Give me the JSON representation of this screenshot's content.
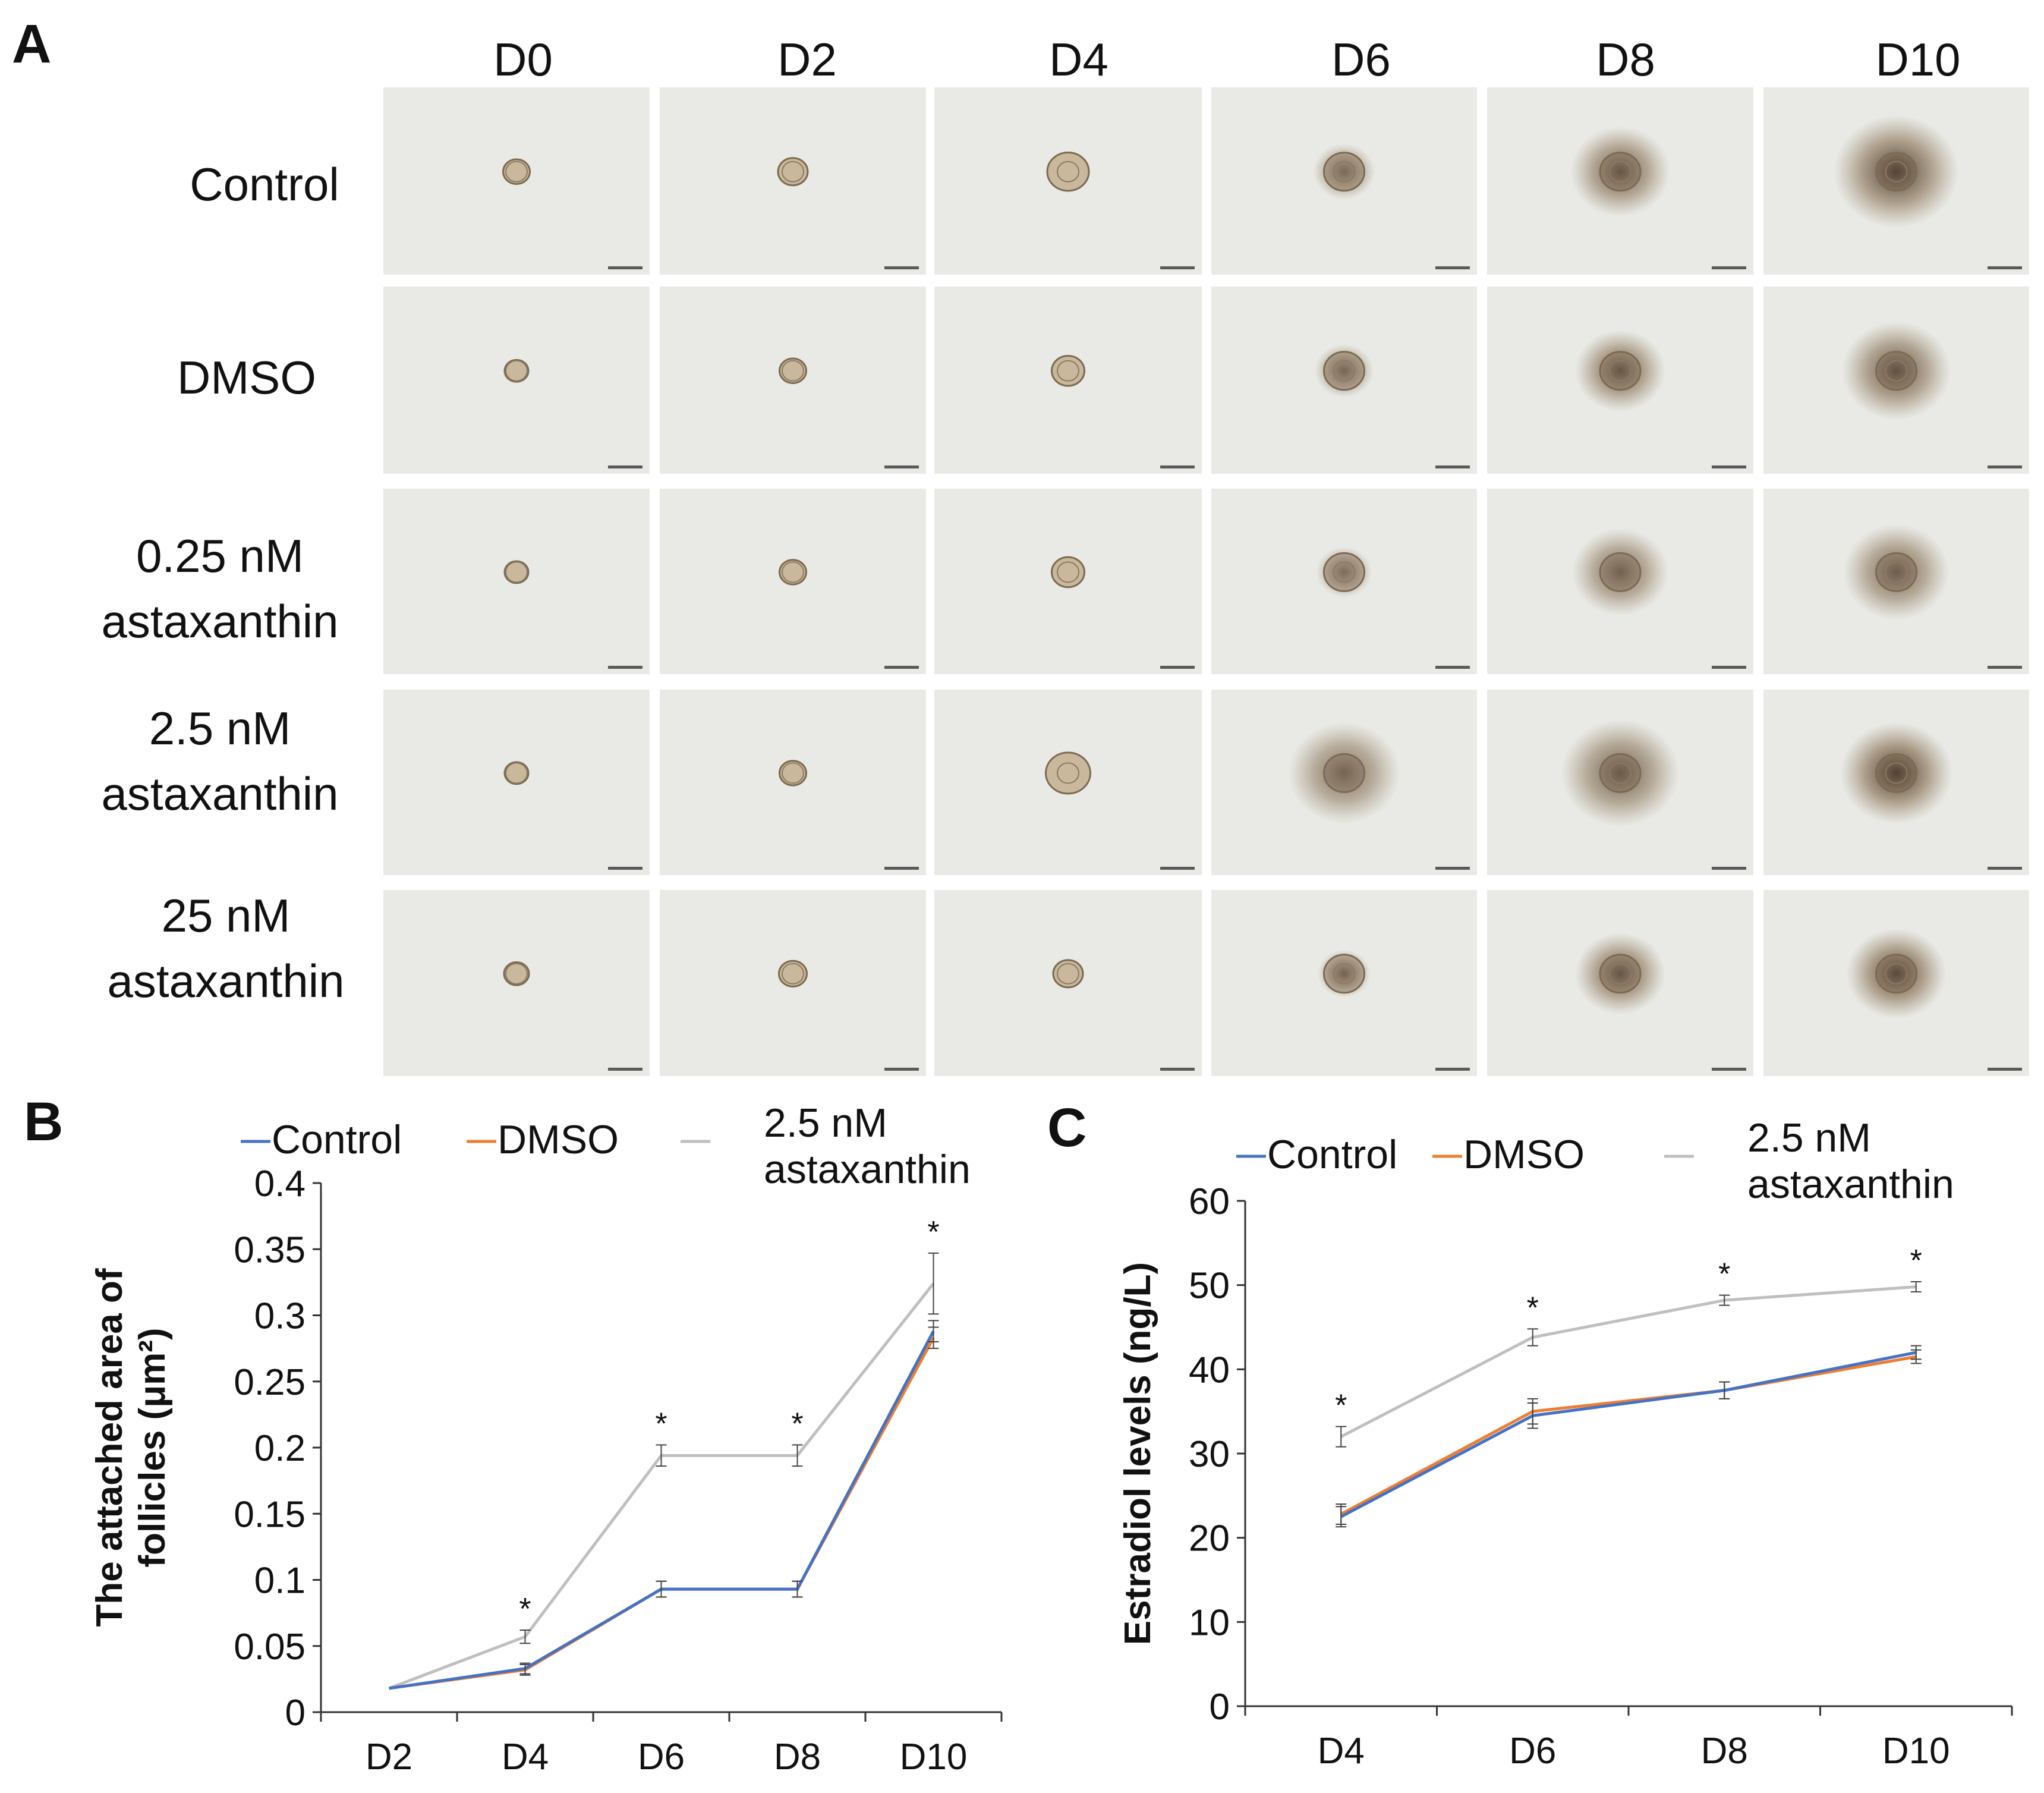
{
  "panel_a": {
    "letter": "A",
    "days": [
      "D0",
      "D2",
      "D4",
      "D6",
      "D8",
      "D10"
    ],
    "rows": [
      {
        "label_lines": [
          "Control"
        ],
        "growth": [
          0.45,
          0.5,
          0.7,
          1.0,
          1.6,
          2.0
        ],
        "darkness": [
          0.15,
          0.15,
          0.25,
          0.35,
          0.6,
          0.8
        ]
      },
      {
        "label_lines": [
          "DMSO"
        ],
        "growth": [
          0.4,
          0.45,
          0.55,
          0.95,
          1.45,
          1.75
        ],
        "darkness": [
          0.15,
          0.15,
          0.2,
          0.4,
          0.6,
          0.65
        ]
      },
      {
        "label_lines": [
          "0.25 nM",
          "astaxanthin"
        ],
        "growth": [
          0.4,
          0.45,
          0.55,
          0.9,
          1.55,
          1.7
        ],
        "darkness": [
          0.15,
          0.15,
          0.2,
          0.3,
          0.45,
          0.5
        ]
      },
      {
        "label_lines": [
          "2.5 nM",
          "astaxanthin"
        ],
        "growth": [
          0.4,
          0.45,
          0.75,
          1.8,
          1.9,
          1.8
        ],
        "darkness": [
          0.15,
          0.15,
          0.3,
          0.4,
          0.55,
          0.85
        ]
      },
      {
        "label_lines": [
          "25 nM",
          "astaxanthin"
        ],
        "growth": [
          0.42,
          0.47,
          0.5,
          0.85,
          1.45,
          1.6
        ],
        "darkness": [
          0.15,
          0.15,
          0.2,
          0.45,
          0.6,
          0.75
        ]
      }
    ]
  },
  "panel_b": {
    "letter": "B"
  },
  "panel_c": {
    "letter": "C"
  },
  "chart_data": [
    {
      "type": "line",
      "panel": "B",
      "title": "",
      "xlabel": "",
      "ylabel_lines": [
        "The attached area of",
        "follicles (μm²)"
      ],
      "categories": [
        "D2",
        "D4",
        "D6",
        "D8",
        "D10"
      ],
      "ylim": [
        0,
        0.4
      ],
      "yticks": [
        "0",
        "0.05",
        "0.1",
        "0.15",
        "0.2",
        "0.25",
        "0.3",
        "0.35",
        "0.4"
      ],
      "series": [
        {
          "name": "Control",
          "color": "#4472C4",
          "values": [
            0.018,
            0.033,
            0.093,
            0.093,
            0.288
          ],
          "errors": [
            0,
            0.004,
            0.006,
            0.006,
            0.008
          ]
        },
        {
          "name": "DMSO",
          "color": "#ED7D31",
          "values": [
            0.018,
            0.032,
            0.093,
            0.093,
            0.283
          ],
          "errors": [
            0,
            0.004,
            0.006,
            0.006,
            0.008
          ]
        },
        {
          "name": "2.5 nM astaxanthin",
          "legend_lines": [
            "2.5 nM",
            "astaxanthin"
          ],
          "color": "#BFBFBF",
          "values": [
            0.018,
            0.057,
            0.194,
            0.194,
            0.324
          ],
          "errors": [
            0,
            0.005,
            0.008,
            0.008,
            0.023
          ]
        }
      ],
      "significance": [
        "",
        "*",
        "*",
        "*",
        "*"
      ],
      "grid": false,
      "legend": "top"
    },
    {
      "type": "line",
      "panel": "C",
      "title": "",
      "xlabel": "",
      "ylabel_lines": [
        "Estradiol levels (ng/L)"
      ],
      "categories": [
        "D4",
        "D6",
        "D8",
        "D10"
      ],
      "ylim": [
        0,
        60
      ],
      "yticks": [
        "0",
        "10",
        "20",
        "30",
        "40",
        "50",
        "60"
      ],
      "series": [
        {
          "name": "Control",
          "color": "#4472C4",
          "values": [
            22.5,
            34.5,
            37.5,
            42.0
          ],
          "errors": [
            1.2,
            1.5,
            1.0,
            0.8
          ]
        },
        {
          "name": "DMSO",
          "color": "#ED7D31",
          "values": [
            22.8,
            35.0,
            37.5,
            41.5
          ],
          "errors": [
            1.2,
            1.5,
            1.0,
            0.8
          ]
        },
        {
          "name": "2.5 nM astaxanthin",
          "legend_lines": [
            "2.5 nM",
            "astaxanthin"
          ],
          "color": "#BFBFBF",
          "values": [
            32.0,
            43.8,
            48.2,
            49.8
          ],
          "errors": [
            1.2,
            1.0,
            0.6,
            0.6
          ]
        }
      ],
      "significance": [
        "*",
        "*",
        "*",
        "*"
      ],
      "grid": false,
      "legend": "top"
    }
  ]
}
